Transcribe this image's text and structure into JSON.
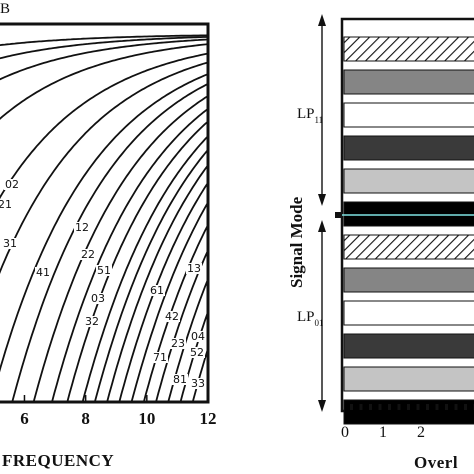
{
  "chart_data": [
    {
      "type": "line",
      "corner_label": "B",
      "xlabel": "FREQUENCY",
      "x_ticks": [
        "6",
        "8",
        "10",
        "12"
      ],
      "x_range_visible": [
        5.2,
        12
      ],
      "grid": false,
      "curve_labels": [
        "02",
        "21",
        "31",
        "12",
        "41",
        "22",
        "51",
        "03",
        "32",
        "61",
        "13",
        "42",
        "04",
        "23",
        "52",
        "71",
        "81",
        "33"
      ]
    },
    {
      "type": "bar",
      "orientation": "horizontal",
      "ylabel": "Signal Mode",
      "xlabel": "Overl",
      "x_ticks": [
        "0",
        "1",
        "2"
      ],
      "groups": [
        {
          "name": "LP",
          "subscript": "11",
          "bar_fills": [
            "hatched",
            "#858585",
            "#ffffff",
            "#3a3a3a",
            "#c4c4c4",
            "#000000"
          ]
        },
        {
          "name": "LP",
          "subscript": "01",
          "bar_fills": [
            "hatched",
            "#858585",
            "#ffffff",
            "#3a3a3a",
            "#c4c4c4",
            "#000000"
          ]
        }
      ],
      "divider_color": "#7fe3e3"
    }
  ]
}
